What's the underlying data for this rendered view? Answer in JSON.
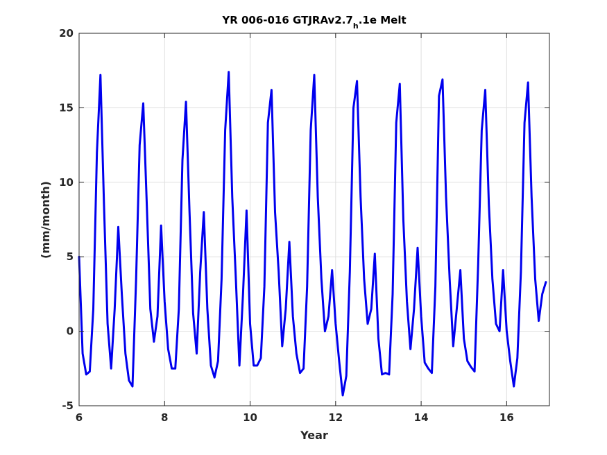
{
  "chart_data": {
    "type": "line",
    "title_main": "YR 006-016 GTJRAv2.7",
    "title_sub": "h",
    "title_tail": ".1e Melt",
    "xlabel": "Year",
    "ylabel": "(mm/month)",
    "xlim": [
      6,
      17
    ],
    "ylim": [
      -5,
      20
    ],
    "xticks": [
      6,
      8,
      10,
      12,
      14,
      16
    ],
    "yticks": [
      -5,
      0,
      5,
      10,
      15,
      20
    ],
    "grid": true,
    "line_color": "#0000ee",
    "series": [
      {
        "x": [
          6.0,
          6.083,
          6.167,
          6.25,
          6.333,
          6.417,
          6.5,
          6.583,
          6.667,
          6.75,
          6.833,
          6.917,
          7.0,
          7.083,
          7.167,
          7.25,
          7.333,
          7.417,
          7.5,
          7.583,
          7.667,
          7.75,
          7.833,
          7.917,
          8.0,
          8.083,
          8.167,
          8.25,
          8.333,
          8.417,
          8.5,
          8.583,
          8.667,
          8.75,
          8.833,
          8.917,
          9.0,
          9.083,
          9.167,
          9.25,
          9.333,
          9.417,
          9.5,
          9.583,
          9.667,
          9.75,
          9.833,
          9.917,
          10.0,
          10.083,
          10.167,
          10.25,
          10.333,
          10.417,
          10.5,
          10.583,
          10.667,
          10.75,
          10.833,
          10.917,
          11.0,
          11.083,
          11.167,
          11.25,
          11.333,
          11.417,
          11.5,
          11.583,
          11.667,
          11.75,
          11.833,
          11.917,
          12.0,
          12.083,
          12.167,
          12.25,
          12.333,
          12.417,
          12.5,
          12.583,
          12.667,
          12.75,
          12.833,
          12.917,
          13.0,
          13.083,
          13.167,
          13.25,
          13.333,
          13.417,
          13.5,
          13.583,
          13.667,
          13.75,
          13.833,
          13.917,
          14.0,
          14.083,
          14.167,
          14.25,
          14.333,
          14.417,
          14.5,
          14.583,
          14.667,
          14.75,
          14.833,
          14.917,
          15.0,
          15.083,
          15.167,
          15.25,
          15.333,
          15.417,
          15.5,
          15.583,
          15.667,
          15.75,
          15.833,
          15.917,
          16.0,
          16.083,
          16.167,
          16.25,
          16.333,
          16.417,
          16.5,
          16.583,
          16.667,
          16.75,
          16.833,
          16.917
        ],
        "y": [
          5.0,
          -1.5,
          -2.9,
          -2.7,
          1.5,
          12.0,
          17.2,
          8.5,
          0.5,
          -2.5,
          1.5,
          7.0,
          2.5,
          -1.5,
          -3.3,
          -3.7,
          3.5,
          12.5,
          15.3,
          8.5,
          1.5,
          -0.7,
          1.0,
          7.1,
          2.0,
          -1.2,
          -2.5,
          -2.5,
          1.5,
          11.5,
          15.4,
          8.0,
          1.2,
          -1.5,
          4.0,
          8.0,
          1.5,
          -2.3,
          -3.1,
          -2.0,
          3.5,
          13.5,
          17.4,
          9.0,
          3.5,
          -2.3,
          2.5,
          8.1,
          0.5,
          -2.3,
          -2.3,
          -1.8,
          3.0,
          14.0,
          16.2,
          8.0,
          4.0,
          -1.0,
          1.5,
          6.0,
          1.0,
          -1.5,
          -2.8,
          -2.5,
          3.0,
          13.5,
          17.2,
          9.0,
          3.5,
          0.0,
          1.0,
          4.1,
          0.5,
          -2.0,
          -4.3,
          -3.0,
          4.0,
          15.0,
          16.8,
          9.0,
          3.5,
          0.5,
          1.5,
          5.2,
          -0.5,
          -2.9,
          -2.8,
          -2.9,
          2.5,
          14.0,
          16.6,
          7.5,
          2.0,
          -1.2,
          1.5,
          5.6,
          1.0,
          -2.1,
          -2.5,
          -2.8,
          3.0,
          15.8,
          16.9,
          9.0,
          3.5,
          -1.0,
          1.5,
          4.1,
          -0.5,
          -2.0,
          -2.4,
          -2.7,
          4.5,
          13.5,
          16.2,
          8.5,
          3.5,
          0.5,
          0.0,
          4.1,
          0.0,
          -2.0,
          -3.7,
          -1.8,
          4.0,
          14.0,
          16.7,
          9.0,
          3.5,
          0.7,
          2.5,
          3.3
        ]
      }
    ]
  }
}
